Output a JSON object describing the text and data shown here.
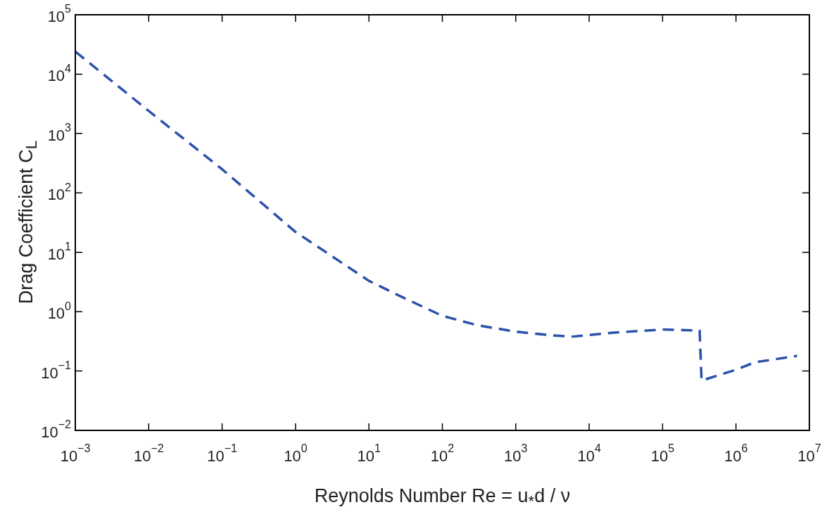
{
  "chart_data": {
    "type": "line",
    "xlabel": "Reynolds Number    Re = u$_{*}$d / ν",
    "ylabel": "Drag Coefficient  C$_{L}$",
    "x": [
      0.001,
      0.01,
      0.1,
      1,
      10,
      30,
      100,
      300,
      1000,
      3000,
      6000,
      20000,
      100000,
      320000,
      340000,
      1000000,
      1800000,
      6800000
    ],
    "values": [
      24000,
      2400,
      250,
      22,
      3.3,
      1.7,
      0.85,
      0.59,
      0.46,
      0.4,
      0.38,
      0.44,
      0.5,
      0.48,
      0.069,
      0.105,
      0.14,
      0.18
    ],
    "color": "#2a52a8",
    "log": "xy",
    "line_style": "dashed",
    "marker": "none",
    "grid": false,
    "legend": false,
    "xlim": [
      0.001,
      10000000
    ],
    "ylim": [
      0.01,
      100000
    ],
    "xticks": [
      {
        "value": 0.001,
        "label": "10$^{−3}$"
      },
      {
        "value": 0.01,
        "label": "10$^{−2}$"
      },
      {
        "value": 0.1,
        "label": "10$^{−1}$"
      },
      {
        "value": 1,
        "label": "10$^{0}$"
      },
      {
        "value": 10,
        "label": "10$^{1}$"
      },
      {
        "value": 100,
        "label": "10$^{2}$"
      },
      {
        "value": 1000,
        "label": "10$^{3}$"
      },
      {
        "value": 10000,
        "label": "10$^{4}$"
      },
      {
        "value": 100000,
        "label": "10$^{5}$"
      },
      {
        "value": 1000000,
        "label": "10$^{6}$"
      },
      {
        "value": 10000000,
        "label": "10$^{7}$"
      }
    ],
    "yticks": [
      {
        "value": 0.01,
        "label": "10$^{−2}$"
      },
      {
        "value": 0.1,
        "label": "10$^{−1}$"
      },
      {
        "value": 1,
        "label": "10$^{0}$"
      },
      {
        "value": 10,
        "label": "10$^{1}$"
      },
      {
        "value": 100,
        "label": "10$^{2}$"
      },
      {
        "value": 1000,
        "label": "10$^{3}$"
      },
      {
        "value": 10000,
        "label": "10$^{4}$"
      },
      {
        "value": 100000,
        "label": "10$^{5}$"
      }
    ]
  }
}
